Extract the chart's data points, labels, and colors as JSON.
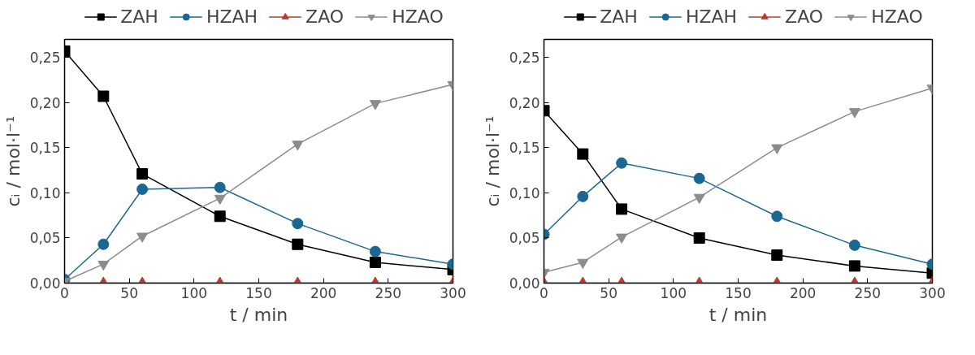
{
  "chart_data": [
    {
      "type": "line",
      "xlabel": "t / min",
      "ylabel": "cᵢ / mol·l⁻¹",
      "x": [
        0,
        30,
        60,
        120,
        180,
        240,
        300
      ],
      "xlim": [
        0,
        300
      ],
      "ylim": [
        0,
        0.27
      ],
      "xticks": [
        0,
        50,
        100,
        150,
        200,
        250,
        300
      ],
      "yticks": [
        {
          "value": 0,
          "label": "0,00"
        },
        {
          "value": 0.05,
          "label": "0,05"
        },
        {
          "value": 0.1,
          "label": "0,10"
        },
        {
          "value": 0.15,
          "label": "0,15"
        },
        {
          "value": 0.2,
          "label": "0,20"
        },
        {
          "value": 0.25,
          "label": "0,25"
        }
      ],
      "grid": false,
      "legend": "top",
      "series": [
        {
          "name": "ZAH",
          "color": "#000000",
          "marker": "square",
          "values": [
            0.257,
            0.207,
            0.121,
            0.074,
            0.043,
            0.023,
            0.015
          ]
        },
        {
          "name": "HZAH",
          "color": "#1a6891",
          "marker": "circle",
          "values": [
            0.004,
            0.043,
            0.104,
            0.106,
            0.066,
            0.035,
            0.021
          ]
        },
        {
          "name": "ZAO",
          "color": "#c0392b",
          "marker": "triangle",
          "values": [
            0,
            0,
            0,
            0,
            0,
            0,
            0
          ]
        },
        {
          "name": "HZAO",
          "color": "#8c8c8c",
          "marker": "triangle_down",
          "values": [
            0.002,
            0.021,
            0.052,
            0.094,
            0.154,
            0.199,
            0.22
          ]
        }
      ]
    },
    {
      "type": "line",
      "xlabel": "t / min",
      "ylabel": "cᵢ / mol·l⁻¹",
      "x": [
        0,
        30,
        60,
        120,
        180,
        240,
        300
      ],
      "xlim": [
        0,
        300
      ],
      "ylim": [
        0,
        0.27
      ],
      "xticks": [
        0,
        50,
        100,
        150,
        200,
        250,
        300
      ],
      "yticks": [
        {
          "value": 0,
          "label": "0,00"
        },
        {
          "value": 0.05,
          "label": "0,05"
        },
        {
          "value": 0.1,
          "label": "0,10"
        },
        {
          "value": 0.15,
          "label": "0,15"
        },
        {
          "value": 0.2,
          "label": "0,20"
        },
        {
          "value": 0.25,
          "label": "0,25"
        }
      ],
      "grid": false,
      "legend": "top",
      "series": [
        {
          "name": "ZAH",
          "color": "#000000",
          "marker": "square",
          "values": [
            0.191,
            0.143,
            0.082,
            0.05,
            0.031,
            0.019,
            0.011
          ]
        },
        {
          "name": "HZAH",
          "color": "#1a6891",
          "marker": "circle",
          "values": [
            0.054,
            0.096,
            0.133,
            0.116,
            0.074,
            0.042,
            0.021
          ]
        },
        {
          "name": "ZAO",
          "color": "#c0392b",
          "marker": "triangle",
          "values": [
            0,
            0,
            0,
            0,
            0,
            0,
            0
          ]
        },
        {
          "name": "HZAO",
          "color": "#8c8c8c",
          "marker": "triangle_down",
          "values": [
            0.012,
            0.023,
            0.051,
            0.095,
            0.15,
            0.19,
            0.216
          ]
        }
      ]
    }
  ]
}
